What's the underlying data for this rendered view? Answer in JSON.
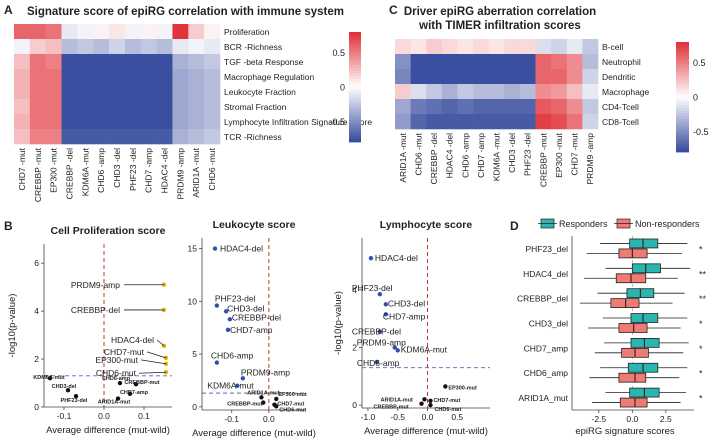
{
  "colors": {
    "blue": "#3b4fa0",
    "white": "#ffffff",
    "red": "#e0333a",
    "ref_line": "#c0392b",
    "responders": "#2bb5b0",
    "nonresponders": "#ef7c74"
  },
  "panels": [
    {
      "letter": "A",
      "title": "Signature score of epiRG correlation with immune system"
    },
    {
      "letter": "C",
      "title_lines": [
        "Driver epiRG aberration correlation",
        "with TIMER infiltration scores"
      ]
    },
    {
      "letter": "B"
    },
    {
      "letter": "D"
    }
  ],
  "chart_data": [
    {
      "type": "heatmap",
      "id": "A",
      "title": "Signature score of epiRG correlation with immune system",
      "rows": [
        "Proliferation",
        "BCR -Richness",
        "TGF -beta Response",
        "Macrophage Regulation",
        "Leukocyte Fraction",
        "Stromal Fraction",
        "Lymphocyte Infiltration Signature Score",
        "TCR -Richness"
      ],
      "columns": [
        "CHD7 -mut",
        "CREBBP -mut",
        "EP300 -mut",
        "CREBBP -del",
        "KDM6A -mut",
        "CHD6 -amp",
        "CHD3 -del",
        "PHF23 -del",
        "CHD7 -amp",
        "HDAC4 -del",
        "PRDM9 -amp",
        "ARID1A -mut",
        "CHD6 -mut"
      ],
      "values": [
        [
          0.6,
          0.6,
          0.55,
          -0.1,
          -0.05,
          0.05,
          0.1,
          -0.05,
          0.05,
          -0.05,
          0.8,
          0.2,
          0.05
        ],
        [
          -0.05,
          0.2,
          0.25,
          -0.3,
          -0.25,
          -0.3,
          -0.2,
          -0.3,
          -0.25,
          -0.3,
          -0.1,
          -0.05,
          -0.1
        ],
        [
          0.25,
          0.55,
          0.5,
          -0.8,
          -0.8,
          -0.8,
          -0.8,
          -0.8,
          -0.8,
          -0.8,
          -0.35,
          -0.3,
          -0.25
        ],
        [
          0.3,
          0.55,
          0.55,
          -0.8,
          -0.8,
          -0.8,
          -0.8,
          -0.8,
          -0.8,
          -0.8,
          -0.4,
          -0.35,
          -0.3
        ],
        [
          0.3,
          0.55,
          0.55,
          -0.8,
          -0.8,
          -0.8,
          -0.8,
          -0.8,
          -0.8,
          -0.8,
          -0.4,
          -0.35,
          -0.3
        ],
        [
          0.25,
          0.55,
          0.55,
          -0.8,
          -0.8,
          -0.8,
          -0.8,
          -0.8,
          -0.8,
          -0.8,
          -0.4,
          -0.35,
          -0.3
        ],
        [
          0.3,
          0.55,
          0.55,
          -0.8,
          -0.8,
          -0.8,
          -0.8,
          -0.8,
          -0.8,
          -0.8,
          -0.4,
          -0.35,
          -0.3
        ],
        [
          0.25,
          0.5,
          0.5,
          -0.75,
          -0.75,
          -0.75,
          -0.75,
          -0.75,
          -0.75,
          -0.75,
          -0.35,
          -0.3,
          -0.25
        ]
      ],
      "legend": {
        "ticks": [
          0.5,
          0,
          -0.5
        ],
        "range": [
          -0.8,
          0.8
        ]
      }
    },
    {
      "type": "heatmap",
      "id": "C",
      "title": "Driver epiRG aberration correlation with TIMER infiltration scores",
      "rows": [
        "B-cell",
        "Neutrophil",
        "Dendritic",
        "Macrophage",
        "CD4-Tcell",
        "CD8-Tcell"
      ],
      "columns": [
        "ARID1A -mut",
        "CHD6 -mut",
        "CREBBP -del",
        "HDAC4 -del",
        "CHD6 -amp",
        "CHD7 -amp",
        "KDM6A -mut",
        "CHD3 -del",
        "PHF23 -del",
        "CREBBP -mut",
        "EP300 -mut",
        "CHD7 -mut",
        "PRDM9 -amp"
      ],
      "values": [
        [
          0.15,
          0.1,
          0.2,
          0.15,
          0.1,
          0.15,
          0.1,
          0.15,
          0.15,
          -0.15,
          -0.2,
          -0.1,
          -0.25
        ],
        [
          -0.5,
          -0.8,
          -0.85,
          -0.85,
          -0.85,
          -0.85,
          -0.85,
          -0.85,
          -0.85,
          0.6,
          0.55,
          0.45,
          -0.3
        ],
        [
          -0.55,
          -0.85,
          -0.85,
          -0.85,
          -0.85,
          -0.85,
          -0.85,
          -0.85,
          -0.85,
          0.6,
          0.6,
          0.45,
          -0.2
        ],
        [
          0.2,
          -0.15,
          -0.25,
          -0.35,
          -0.25,
          -0.3,
          -0.3,
          -0.35,
          -0.3,
          0.45,
          0.4,
          0.25,
          -0.1
        ],
        [
          -0.4,
          -0.6,
          -0.65,
          -0.7,
          -0.65,
          -0.7,
          -0.7,
          -0.7,
          -0.7,
          0.65,
          0.6,
          0.45,
          -0.25
        ],
        [
          -0.45,
          -0.7,
          -0.75,
          -0.75,
          -0.75,
          -0.75,
          -0.75,
          -0.75,
          -0.75,
          0.75,
          0.7,
          0.55,
          -0.2
        ]
      ],
      "legend": {
        "ticks": [
          0.5,
          0,
          -0.5
        ],
        "range": [
          -0.8,
          0.8
        ]
      }
    },
    {
      "type": "scatter",
      "id": "B1",
      "title": "Cell Proliferation score",
      "xlabel": "Average difference (mut-wild)",
      "ylabel": "-log10(p-value)",
      "xlim": [
        -0.15,
        0.17
      ],
      "ylim": [
        0,
        6.8
      ],
      "xticks": [
        -0.1,
        0.0,
        0.1
      ],
      "yticks": [
        0,
        2,
        4,
        6
      ],
      "vline": 0,
      "hline": 1.3,
      "points": [
        {
          "label": "PRDM9-amp",
          "x": 0.15,
          "y": 5.1
        },
        {
          "label": "CREBBP-del",
          "x": 0.15,
          "y": 4.05
        },
        {
          "label": "HDAC4-del",
          "x": 0.15,
          "y": 2.55
        },
        {
          "label": "CHD7-mut",
          "x": 0.155,
          "y": 2.05
        },
        {
          "label": "EP300-mut",
          "x": 0.155,
          "y": 1.8
        },
        {
          "label": "CHD6-mut",
          "x": 0.155,
          "y": 1.45
        },
        {
          "label": "KDM6A-mut",
          "x": -0.135,
          "y": 1.2
        },
        {
          "label": "CHD3-del",
          "x": -0.09,
          "y": 0.7
        },
        {
          "label": "PHF23-del",
          "x": -0.07,
          "y": 0.45
        },
        {
          "label": "CHD6-amp",
          "x": 0.04,
          "y": 1.0
        },
        {
          "label": "CREBBP-mut",
          "x": 0.08,
          "y": 0.95
        },
        {
          "label": "CHD7-amp",
          "x": 0.065,
          "y": 0.55
        },
        {
          "label": "ARID1A-mut",
          "x": 0.035,
          "y": 0.35
        }
      ]
    },
    {
      "type": "scatter",
      "id": "B2",
      "title": "Leukocyte score",
      "xlabel": "Average difference (mut-wild)",
      "ylabel": "",
      "xlim": [
        -0.18,
        0.1
      ],
      "ylim": [
        -0.3,
        16
      ],
      "xticks": [
        -0.1,
        0.0
      ],
      "yticks": [
        0,
        5,
        10,
        15
      ],
      "vline": 0,
      "hline": 1.3,
      "points": [
        {
          "label": "HDAC4-del",
          "x": -0.145,
          "y": 15.0
        },
        {
          "label": "PHF23-del",
          "x": -0.14,
          "y": 9.6
        },
        {
          "label": "CHD3-del",
          "x": -0.115,
          "y": 9.05
        },
        {
          "label": "CREBBP-del",
          "x": -0.105,
          "y": 8.3
        },
        {
          "label": "CHD7-amp",
          "x": -0.11,
          "y": 7.3
        },
        {
          "label": "CHD6-amp",
          "x": -0.14,
          "y": 4.2
        },
        {
          "label": "PRDM9-amp",
          "x": -0.07,
          "y": 2.7
        },
        {
          "label": "KDM6A-mut",
          "x": -0.085,
          "y": 2.0
        },
        {
          "label": "ARID1A-mut",
          "x": -0.02,
          "y": 0.9
        },
        {
          "label": "EP300-mut",
          "x": 0.02,
          "y": 0.75
        },
        {
          "label": "CREBBP-mut",
          "x": -0.015,
          "y": 0.4
        },
        {
          "label": "CHD7-mut",
          "x": 0.015,
          "y": 0.2
        },
        {
          "label": "CHD6-mut",
          "x": 0.02,
          "y": 0.05
        }
      ]
    },
    {
      "type": "scatter",
      "id": "B3",
      "title": "Lymphocyte score",
      "xlabel": "Average difference (mut-wild)",
      "ylabel": "-log10(p-value)",
      "xlim": [
        -1.1,
        1.05
      ],
      "ylim": [
        -0.1,
        5.8
      ],
      "xticks": [
        -1.0,
        -0.5,
        0.0,
        0.5
      ],
      "yticks": [
        0,
        2,
        4
      ],
      "vline": 0,
      "hline": 1.3,
      "points": [
        {
          "label": "HDAC4-del",
          "x": -0.95,
          "y": 5.1
        },
        {
          "label": "PHF23-del",
          "x": -0.8,
          "y": 3.85
        },
        {
          "label": "CHD3-del",
          "x": -0.7,
          "y": 3.5
        },
        {
          "label": "CHD7-amp",
          "x": -0.7,
          "y": 3.15
        },
        {
          "label": "CREBBP-del",
          "x": -0.8,
          "y": 2.55
        },
        {
          "label": "KDM6A-mut",
          "x": -0.5,
          "y": 1.9
        },
        {
          "label": "PRDM9-amp",
          "x": -0.55,
          "y": 2.0
        },
        {
          "label": "CHD6-amp",
          "x": -0.85,
          "y": 1.5
        },
        {
          "label": "EP300-mut",
          "x": 0.3,
          "y": 0.65
        },
        {
          "label": "ARID1A-mut",
          "x": -0.05,
          "y": 0.2
        },
        {
          "label": "CHD7-mut",
          "x": 0.05,
          "y": 0.15
        },
        {
          "label": "CREBBP-mut",
          "x": -0.1,
          "y": 0.05
        },
        {
          "label": "CHD6-mut",
          "x": 0.05,
          "y": 0.0
        }
      ]
    },
    {
      "type": "box",
      "id": "D",
      "xlabel": "epiRG signature scores",
      "xlim": [
        -4.5,
        4.6
      ],
      "xticks": [
        -2.5,
        0.0,
        2.5
      ],
      "legend": [
        "Responders",
        "Non-responders"
      ],
      "groups": [
        {
          "label": "PHF23_del",
          "sig": "*",
          "responders": {
            "min": -2.4,
            "q1": -0.2,
            "median": 0.8,
            "q3": 1.9,
            "max": 4.1
          },
          "nonresponders": {
            "min": -3.4,
            "q1": -1.0,
            "median": 0.0,
            "q3": 1.1,
            "max": 3.7
          }
        },
        {
          "label": "HDAC4_del",
          "sig": "**",
          "responders": {
            "min": -2.0,
            "q1": 0.0,
            "median": 1.0,
            "q3": 2.1,
            "max": 4.3
          },
          "nonresponders": {
            "min": -3.6,
            "q1": -1.2,
            "median": -0.1,
            "q3": 1.0,
            "max": 3.4
          }
        },
        {
          "label": "CREBBP_del",
          "sig": "**",
          "responders": {
            "min": -2.6,
            "q1": -0.4,
            "median": 0.6,
            "q3": 1.6,
            "max": 3.9
          },
          "nonresponders": {
            "min": -3.9,
            "q1": -1.6,
            "median": -0.5,
            "q3": 0.5,
            "max": 3.0
          }
        },
        {
          "label": "CHD3_del",
          "sig": "*",
          "responders": {
            "min": -2.2,
            "q1": -0.1,
            "median": 0.8,
            "q3": 1.9,
            "max": 4.1
          },
          "nonresponders": {
            "min": -3.3,
            "q1": -1.0,
            "median": 0.1,
            "q3": 1.1,
            "max": 3.6
          }
        },
        {
          "label": "CHD7_amp",
          "sig": "*",
          "responders": {
            "min": -2.1,
            "q1": -0.1,
            "median": 0.9,
            "q3": 2.0,
            "max": 4.2
          },
          "nonresponders": {
            "min": -2.8,
            "q1": -0.8,
            "median": 0.2,
            "q3": 1.2,
            "max": 3.8
          }
        },
        {
          "label": "CHD6_amp",
          "sig": "*",
          "responders": {
            "min": -2.4,
            "q1": -0.3,
            "median": 0.8,
            "q3": 1.9,
            "max": 4.1
          },
          "nonresponders": {
            "min": -3.2,
            "q1": -1.0,
            "median": 0.2,
            "q3": 1.0,
            "max": 3.5
          }
        },
        {
          "label": "ARID1A_mut",
          "sig": "*",
          "responders": {
            "min": -2.0,
            "q1": -0.2,
            "median": 0.9,
            "q3": 2.0,
            "max": 4.0
          },
          "nonresponders": {
            "min": -3.0,
            "q1": -0.9,
            "median": 0.2,
            "q3": 1.1,
            "max": 3.6
          }
        }
      ]
    }
  ]
}
